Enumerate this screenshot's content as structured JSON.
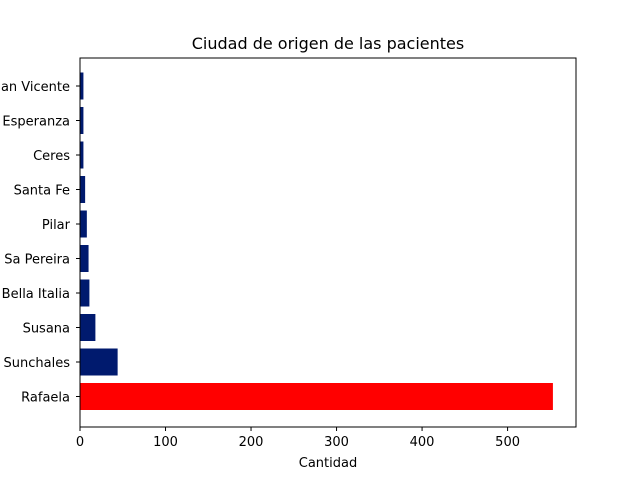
{
  "chart_data": {
    "type": "bar",
    "orientation": "horizontal",
    "title": "Ciudad de origen de las pacientes",
    "xlabel": "Cantidad",
    "ylabel": "",
    "xlim": [
      0,
      580
    ],
    "x_ticks": [
      0,
      100,
      200,
      300,
      400,
      500
    ],
    "categories": [
      "Rafaela",
      "Sunchales",
      "Susana",
      "Bella Italia",
      "Sa Pereira",
      "Pilar",
      "Santa Fe",
      "Ceres",
      "Esperanza",
      "an Vicente"
    ],
    "values": [
      553,
      44,
      18,
      11,
      10,
      8,
      6,
      4,
      4,
      4
    ],
    "bar_colors": [
      "#ff0000",
      "#001a6e",
      "#001a6e",
      "#001a6e",
      "#001a6e",
      "#001a6e",
      "#001a6e",
      "#001a6e",
      "#001a6e",
      "#001a6e"
    ],
    "grid": false,
    "legend": "none"
  }
}
